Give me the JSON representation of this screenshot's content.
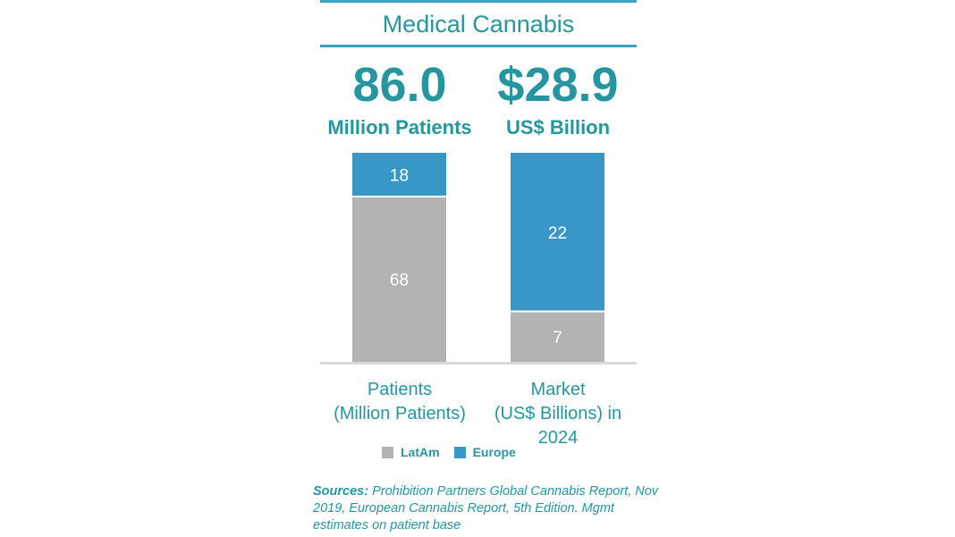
{
  "title": "Medical Cannabis",
  "headline_left": {
    "value": "86.0",
    "unit": "Million Patients"
  },
  "headline_right": {
    "value": "$28.9",
    "unit": "US$ Billion"
  },
  "colors": {
    "latam": "#b3b3b3",
    "europe": "#3997c8",
    "accent": "#2596a0",
    "rule": "#3aa2c4"
  },
  "chart_data": {
    "type": "bar",
    "stacked": true,
    "categories": [
      "Patients\n(Million Patients)",
      "Market\n(US$ Billions) in\n2024"
    ],
    "series": [
      {
        "name": "LatAm",
        "values": [
          68,
          7
        ],
        "color": "#b3b3b3"
      },
      {
        "name": "Europe",
        "values": [
          18,
          22
        ],
        "color": "#3997c8"
      }
    ],
    "data_labels": [
      [
        "68",
        "7"
      ],
      [
        "18",
        "22"
      ]
    ],
    "legend_position": "bottom",
    "grid": false
  },
  "categories_display": [
    {
      "line1": "Patients",
      "line2": "(Million Patients)",
      "line3": ""
    },
    {
      "line1": "Market",
      "line2": "(US$ Billions) in",
      "line3": "2024"
    }
  ],
  "legend": {
    "latam": "LatAm",
    "europe": "Europe"
  },
  "sources": {
    "label": "Sources:",
    "text": " Prohibition Partners Global Cannabis Report, Nov 2019, European Cannabis Report, 5th Edition. Mgmt estimates on patient base"
  }
}
